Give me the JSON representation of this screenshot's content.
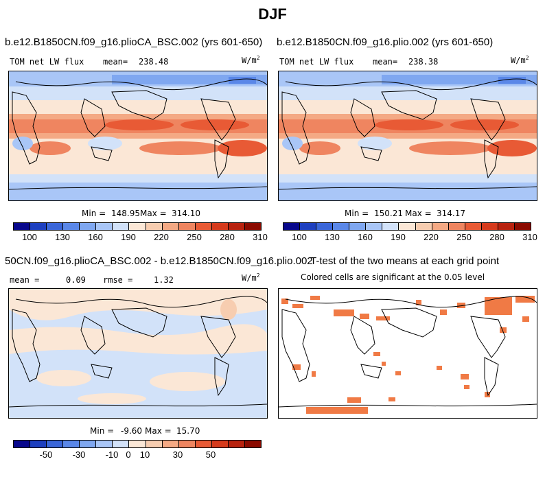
{
  "title": "DJF",
  "panels": [
    {
      "title": "b.e12.B1850CN.f09_g16.plioCA_BSC.002 (yrs 601-650)",
      "left_label": "TOM net LW flux",
      "mean_label": "mean=",
      "mean_value": "238.48",
      "units": "W/m",
      "units_sup": "2",
      "min_label": "Min =",
      "min_value": "148.95",
      "max_label": "Max =",
      "max_value": "314.10"
    },
    {
      "title": "b.e12.B1850CN.f09_g16.plio.002 (yrs 601-650)",
      "left_label": "TOM net LW flux",
      "mean_label": "mean=",
      "mean_value": "238.38",
      "units": "W/m",
      "units_sup": "2",
      "min_label": "Min =",
      "min_value": "150.21",
      "max_label": "Max =",
      "max_value": "314.17"
    },
    {
      "title": "50CN.f09_g16.plioCA_BSC.002 - b.e12.B1850CN.f09_g16.plio.002",
      "mean_label": "mean =",
      "mean_value": "0.09",
      "rmse_label": "rmse =",
      "rmse_value": "1.32",
      "units": "W/m",
      "units_sup": "2",
      "min_label": "Min =",
      "min_value": "-9.60",
      "max_label": "Max =",
      "max_value": "15.70"
    },
    {
      "title": "T-test of the two means at each grid point",
      "subtitle": "Colored cells are significant at the 0.05 level"
    }
  ],
  "chart_data": [
    {
      "type": "heatmap",
      "title": "b.e12.B1850CN.f09_g16.plioCA_BSC.002 (yrs 601-650)",
      "variable": "TOM net LW flux",
      "units": "W/m^2",
      "mean": 238.48,
      "min": 148.95,
      "max": 314.1,
      "colorbar_ticks": [
        100,
        130,
        160,
        190,
        220,
        250,
        280,
        310
      ],
      "colorbar_colors": [
        "#08088c",
        "#1d3fbf",
        "#3a66d9",
        "#5a87e8",
        "#7fa7f0",
        "#a9c6f7",
        "#d2e2f9",
        "#fbe7d6",
        "#f7cdb0",
        "#f4a984",
        "#ef8560",
        "#e85a35",
        "#d63a1c",
        "#b8220f",
        "#8b0a00"
      ]
    },
    {
      "type": "heatmap",
      "title": "b.e12.B1850CN.f09_g16.plio.002 (yrs 601-650)",
      "variable": "TOM net LW flux",
      "units": "W/m^2",
      "mean": 238.38,
      "min": 150.21,
      "max": 314.17,
      "colorbar_ticks": [
        100,
        130,
        160,
        190,
        220,
        250,
        280,
        310
      ],
      "colorbar_colors": [
        "#08088c",
        "#1d3fbf",
        "#3a66d9",
        "#5a87e8",
        "#7fa7f0",
        "#a9c6f7",
        "#d2e2f9",
        "#fbe7d6",
        "#f7cdb0",
        "#f4a984",
        "#ef8560",
        "#e85a35",
        "#d63a1c",
        "#b8220f",
        "#8b0a00"
      ]
    },
    {
      "type": "heatmap",
      "title": "50CN.f09_g16.plioCA_BSC.002 - b.e12.B1850CN.f09_g16.plio.002",
      "units": "W/m^2",
      "mean": 0.09,
      "rmse": 1.32,
      "min": -9.6,
      "max": 15.7,
      "colorbar_ticks": [
        -50,
        -30,
        -10,
        0,
        10,
        30,
        50
      ],
      "colorbar_colors": [
        "#08088c",
        "#1d3fbf",
        "#3a66d9",
        "#5a87e8",
        "#7fa7f0",
        "#a9c6f7",
        "#d2e2f9",
        "#fbe7d6",
        "#f7cdb0",
        "#f4a984",
        "#ef8560",
        "#e85a35",
        "#d63a1c",
        "#b8220f",
        "#8b0a00"
      ]
    },
    {
      "type": "heatmap",
      "title": "T-test of the two means at each grid point",
      "subtitle": "Colored cells are significant at the 0.05 level",
      "significance_level": 0.05,
      "colorbar_colors": [
        "#f07a45"
      ]
    }
  ]
}
